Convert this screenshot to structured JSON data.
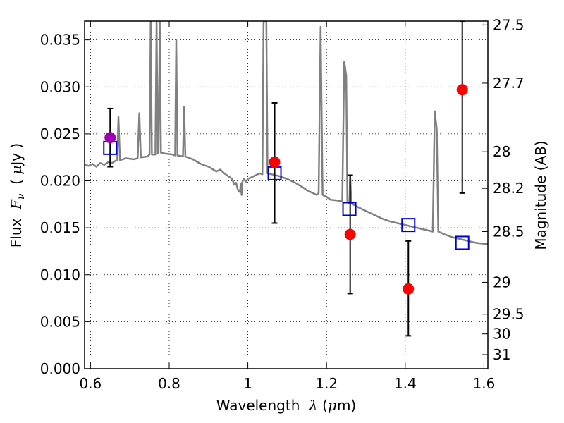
{
  "chart_data": {
    "type": "scatter",
    "xlabel": "Wavelength  λ (μm)",
    "ylabel": "Flux  F_ν  ( μJy )",
    "ylabel_right": "Magnitude (AB)",
    "xlim": [
      0.585,
      1.61
    ],
    "ylim": [
      0.0,
      0.037
    ],
    "grid": true,
    "x_ticks": [
      0.6,
      0.8,
      1.0,
      1.2,
      1.4,
      1.6
    ],
    "x_tick_labels": [
      "0.6",
      "0.8",
      "1",
      "1.2",
      "1.4",
      "1.6"
    ],
    "y_ticks": [
      0.0,
      0.005,
      0.01,
      0.015,
      0.02,
      0.025,
      0.03,
      0.035
    ],
    "y_tick_labels": [
      "0.000",
      "0.005",
      "0.010",
      "0.015",
      "0.020",
      "0.025",
      "0.030",
      "0.035"
    ],
    "right_ticks": [
      {
        "label": "27.5",
        "flux": 0.0366
      },
      {
        "label": "27.7",
        "flux": 0.0304
      },
      {
        "label": "28",
        "flux": 0.0231
      },
      {
        "label": "28.2",
        "flux": 0.0192
      },
      {
        "label": "28.5",
        "flux": 0.0146
      },
      {
        "label": "29",
        "flux": 0.0092
      },
      {
        "label": "29.5",
        "flux": 0.0058
      },
      {
        "label": "30",
        "flux": 0.0037
      },
      {
        "label": "31",
        "flux": 0.0015
      }
    ],
    "template_color": "#808080",
    "template_spectrum": [
      [
        0.585,
        0.0217
      ],
      [
        0.595,
        0.0216
      ],
      [
        0.605,
        0.0218
      ],
      [
        0.615,
        0.0215
      ],
      [
        0.625,
        0.0219
      ],
      [
        0.635,
        0.0217
      ],
      [
        0.645,
        0.022
      ],
      [
        0.655,
        0.0219
      ],
      [
        0.662,
        0.0221
      ],
      [
        0.668,
        0.0222
      ],
      [
        0.671,
        0.0268
      ],
      [
        0.675,
        0.0222
      ],
      [
        0.69,
        0.0224
      ],
      [
        0.71,
        0.0223
      ],
      [
        0.72,
        0.0224
      ],
      [
        0.724,
        0.0272
      ],
      [
        0.728,
        0.0225
      ],
      [
        0.745,
        0.0226
      ],
      [
        0.75,
        0.0228
      ],
      [
        0.753,
        0.037
      ],
      [
        0.756,
        0.0228
      ],
      [
        0.765,
        0.0228
      ],
      [
        0.768,
        0.037
      ],
      [
        0.771,
        0.0229
      ],
      [
        0.773,
        0.0229
      ],
      [
        0.776,
        0.037
      ],
      [
        0.779,
        0.023
      ],
      [
        0.79,
        0.0229
      ],
      [
        0.81,
        0.0228
      ],
      [
        0.815,
        0.0227
      ],
      [
        0.818,
        0.035
      ],
      [
        0.821,
        0.0227
      ],
      [
        0.835,
        0.0226
      ],
      [
        0.838,
        0.0279
      ],
      [
        0.841,
        0.0226
      ],
      [
        0.86,
        0.0223
      ],
      [
        0.88,
        0.0218
      ],
      [
        0.9,
        0.0215
      ],
      [
        0.92,
        0.021
      ],
      [
        0.93,
        0.0212
      ],
      [
        0.94,
        0.0208
      ],
      [
        0.95,
        0.0205
      ],
      [
        0.96,
        0.0202
      ],
      [
        0.965,
        0.0196
      ],
      [
        0.97,
        0.0198
      ],
      [
        0.975,
        0.019
      ],
      [
        0.98,
        0.0188
      ],
      [
        0.982,
        0.0197
      ],
      [
        0.984,
        0.0185
      ],
      [
        0.986,
        0.0199
      ],
      [
        0.99,
        0.0202
      ],
      [
        0.995,
        0.0199
      ],
      [
        1.0,
        0.0202
      ],
      [
        1.01,
        0.0204
      ],
      [
        1.02,
        0.0206
      ],
      [
        1.03,
        0.0208
      ],
      [
        1.037,
        0.0207
      ],
      [
        1.04,
        0.037
      ],
      [
        1.047,
        0.037
      ],
      [
        1.05,
        0.0208
      ],
      [
        1.06,
        0.0207
      ],
      [
        1.08,
        0.0205
      ],
      [
        1.1,
        0.0202
      ],
      [
        1.12,
        0.0198
      ],
      [
        1.14,
        0.0193
      ],
      [
        1.15,
        0.019
      ],
      [
        1.16,
        0.0188
      ],
      [
        1.175,
        0.0185
      ],
      [
        1.18,
        0.0187
      ],
      [
        1.185,
        0.0364
      ],
      [
        1.19,
        0.0185
      ],
      [
        1.2,
        0.0183
      ],
      [
        1.21,
        0.018
      ],
      [
        1.23,
        0.0179
      ],
      [
        1.24,
        0.0178
      ],
      [
        1.245,
        0.0327
      ],
      [
        1.25,
        0.0312
      ],
      [
        1.253,
        0.0178
      ],
      [
        1.258,
        0.0176
      ],
      [
        1.26,
        0.0206
      ],
      [
        1.263,
        0.0176
      ],
      [
        1.28,
        0.0172
      ],
      [
        1.3,
        0.0168
      ],
      [
        1.32,
        0.0164
      ],
      [
        1.34,
        0.016
      ],
      [
        1.36,
        0.0157
      ],
      [
        1.38,
        0.0155
      ],
      [
        1.4,
        0.0153
      ],
      [
        1.42,
        0.0151
      ],
      [
        1.44,
        0.0149
      ],
      [
        1.46,
        0.0147
      ],
      [
        1.47,
        0.0146
      ],
      [
        1.475,
        0.0274
      ],
      [
        1.48,
        0.0255
      ],
      [
        1.484,
        0.0146
      ],
      [
        1.5,
        0.0143
      ],
      [
        1.52,
        0.014
      ],
      [
        1.54,
        0.0138
      ],
      [
        1.56,
        0.0136
      ],
      [
        1.58,
        0.0134
      ],
      [
        1.6,
        0.0133
      ],
      [
        1.61,
        0.0133
      ]
    ],
    "template_points": [
      {
        "x": 0.65,
        "y": 0.0235
      },
      {
        "x": 1.068,
        "y": 0.0208
      },
      {
        "x": 1.258,
        "y": 0.017
      },
      {
        "x": 1.408,
        "y": 0.0153
      },
      {
        "x": 1.545,
        "y": 0.0134
      }
    ],
    "observations": [
      {
        "x": 0.65,
        "y": 0.0246,
        "err_low": 0.0215,
        "err_high": 0.0277,
        "color": "#a000b0"
      },
      {
        "x": 1.068,
        "y": 0.022,
        "err_low": 0.0155,
        "err_high": 0.0283,
        "color": "#ff0000"
      },
      {
        "x": 1.26,
        "y": 0.0143,
        "err_low": 0.008,
        "err_high": 0.0206,
        "color": "#ff0000"
      },
      {
        "x": 1.408,
        "y": 0.0085,
        "err_low": 0.0035,
        "err_high": 0.0136,
        "color": "#ff0000"
      },
      {
        "x": 1.545,
        "y": 0.0297,
        "err_low": 0.0187,
        "err_high": 0.037,
        "color": "#ff0000"
      }
    ]
  }
}
